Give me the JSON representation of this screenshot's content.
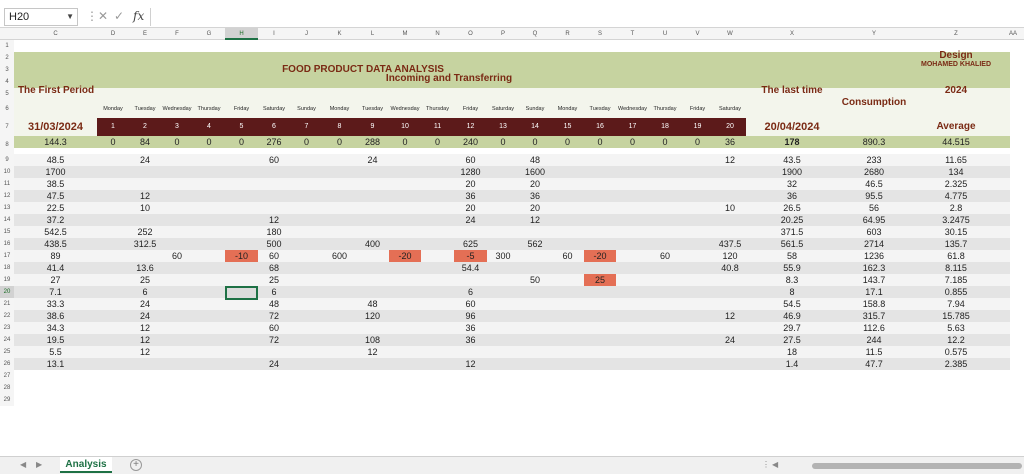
{
  "namebox": "H20",
  "fx": "fx",
  "sheet_tab": "Analysis",
  "title": "FOOD PRODUCT DATA ANALYSIS",
  "design_label": "Design",
  "designer": "MOHAMED KHALIED",
  "first_period_label": "The First Period",
  "incoming_label": "Incoming and Transferring",
  "last_time_label": "The last time",
  "consumption_label": "Consumption",
  "year": "2024",
  "average_label": "Average",
  "start_date": "31/03/2024",
  "end_date": "20/04/2024",
  "columns": [
    "C",
    "D",
    "E",
    "F",
    "G",
    "H",
    "I",
    "J",
    "K",
    "L",
    "M",
    "N",
    "O",
    "P",
    "Q",
    "R",
    "S",
    "T",
    "U",
    "V",
    "W",
    "X",
    "Y",
    "Z",
    "AA"
  ],
  "rows": [
    "1",
    "2",
    "3",
    "4",
    "5",
    "6",
    "7",
    "8",
    "9",
    "10",
    "11",
    "12",
    "13",
    "14",
    "15",
    "16",
    "17",
    "18",
    "19",
    "20",
    "21",
    "22",
    "23",
    "24",
    "25",
    "26",
    "27",
    "28",
    "29"
  ],
  "days": [
    "Monday",
    "Tuesday",
    "Wednesday",
    "Thursday",
    "Friday",
    "Saturday",
    "Sunday",
    "Monday",
    "Tuesday",
    "Wednesday",
    "Thursday",
    "Friday",
    "Saturday",
    "Sunday",
    "Monday",
    "Tuesday",
    "Wednesday",
    "Thursday",
    "Friday",
    "Saturday"
  ],
  "day_numbers": [
    "1",
    "2",
    "3",
    "4",
    "5",
    "6",
    "7",
    "8",
    "9",
    "10",
    "11",
    "12",
    "13",
    "14",
    "15",
    "16",
    "17",
    "18",
    "19",
    "20"
  ],
  "data_rows": [
    {
      "first": "144.3",
      "d": [
        "0",
        "84",
        "0",
        "0",
        "0",
        "276",
        "0",
        "0",
        "288",
        "0",
        "0",
        "240",
        "0",
        "0",
        "0",
        "0",
        "0",
        "0",
        "0",
        "36"
      ],
      "last": "178",
      "cons": "890.3",
      "avg": "44.515"
    },
    {
      "first": "48.5",
      "d": [
        "",
        "24",
        "",
        "",
        "",
        "60",
        "",
        "",
        "24",
        "",
        "",
        "60",
        "",
        "48",
        "",
        "",
        "",
        "",
        "",
        "12"
      ],
      "last": "43.5",
      "cons": "233",
      "avg": "11.65"
    },
    {
      "first": "1700",
      "d": [
        "",
        "",
        "",
        "",
        "",
        "",
        "",
        "",
        "",
        "",
        "",
        "1280",
        "",
        "1600",
        "",
        "",
        "",
        "",
        "",
        ""
      ],
      "last": "1900",
      "cons": "2680",
      "avg": "134"
    },
    {
      "first": "38.5",
      "d": [
        "",
        "",
        "",
        "",
        "",
        "",
        "",
        "",
        "",
        "",
        "",
        "20",
        "",
        "20",
        "",
        "",
        "",
        "",
        "",
        ""
      ],
      "last": "32",
      "cons": "46.5",
      "avg": "2.325"
    },
    {
      "first": "47.5",
      "d": [
        "",
        "12",
        "",
        "",
        "",
        "",
        "",
        "",
        "",
        "",
        "",
        "36",
        "",
        "36",
        "",
        "",
        "",
        "",
        "",
        ""
      ],
      "last": "36",
      "cons": "95.5",
      "avg": "4.775"
    },
    {
      "first": "22.5",
      "d": [
        "",
        "10",
        "",
        "",
        "",
        "",
        "",
        "",
        "",
        "",
        "",
        "20",
        "",
        "20",
        "",
        "",
        "",
        "",
        "",
        "10"
      ],
      "last": "26.5",
      "cons": "56",
      "avg": "2.8"
    },
    {
      "first": "37.2",
      "d": [
        "",
        "",
        "",
        "",
        "",
        "12",
        "",
        "",
        "",
        "",
        "",
        "24",
        "",
        "12",
        "",
        "",
        "",
        "",
        "",
        ""
      ],
      "last": "20.25",
      "cons": "64.95",
      "avg": "3.2475"
    },
    {
      "first": "542.5",
      "d": [
        "",
        "252",
        "",
        "",
        "",
        "180",
        "",
        "",
        "",
        "",
        "",
        "",
        "",
        "",
        "",
        "",
        "",
        "",
        "",
        ""
      ],
      "last": "371.5",
      "cons": "603",
      "avg": "30.15"
    },
    {
      "first": "438.5",
      "d": [
        "",
        "312.5",
        "",
        "",
        "",
        "500",
        "",
        "",
        "400",
        "",
        "",
        "625",
        "",
        "562",
        "",
        "",
        "",
        "",
        "",
        "437.5"
      ],
      "last": "561.5",
      "cons": "2714",
      "avg": "135.7"
    },
    {
      "first": "89",
      "d": [
        "",
        "",
        "60",
        "",
        "-10",
        "60",
        "",
        "600",
        "",
        "-20",
        "",
        "-5",
        "300",
        "",
        "60",
        "-20",
        "",
        "60",
        "",
        "120"
      ],
      "last": "58",
      "cons": "1236",
      "avg": "61.8"
    },
    {
      "first": "41.4",
      "d": [
        "",
        "13.6",
        "",
        "",
        "",
        "68",
        "",
        "",
        "",
        "",
        "",
        "54.4",
        "",
        "",
        "",
        "",
        "",
        "",
        "",
        "40.8"
      ],
      "last": "55.9",
      "cons": "162.3",
      "avg": "8.115"
    },
    {
      "first": "27",
      "d": [
        "",
        "25",
        "",
        "",
        "",
        "25",
        "",
        "",
        "",
        "",
        "",
        "",
        "",
        "50",
        "",
        "25",
        "",
        "",
        "",
        ""
      ],
      "last": "8.3",
      "cons": "143.7",
      "avg": "7.185"
    },
    {
      "first": "7.1",
      "d": [
        "",
        "6",
        "",
        "",
        "",
        "6",
        "",
        "",
        "",
        "",
        "",
        "6",
        "",
        "",
        "",
        "",
        "",
        "",
        "",
        ""
      ],
      "last": "8",
      "cons": "17.1",
      "avg": "0.855"
    },
    {
      "first": "33.3",
      "d": [
        "",
        "24",
        "",
        "",
        "",
        "48",
        "",
        "",
        "48",
        "",
        "",
        "60",
        "",
        "",
        "",
        "",
        "",
        "",
        "",
        ""
      ],
      "last": "54.5",
      "cons": "158.8",
      "avg": "7.94"
    },
    {
      "first": "38.6",
      "d": [
        "",
        "24",
        "",
        "",
        "",
        "72",
        "",
        "",
        "120",
        "",
        "",
        "96",
        "",
        "",
        "",
        "",
        "",
        "",
        "",
        "12"
      ],
      "last": "46.9",
      "cons": "315.7",
      "avg": "15.785"
    },
    {
      "first": "34.3",
      "d": [
        "",
        "12",
        "",
        "",
        "",
        "60",
        "",
        "",
        "",
        "",
        "",
        "36",
        "",
        "",
        "",
        "",
        "",
        "",
        "",
        ""
      ],
      "last": "29.7",
      "cons": "112.6",
      "avg": "5.63"
    },
    {
      "first": "19.5",
      "d": [
        "",
        "12",
        "",
        "",
        "",
        "72",
        "",
        "",
        "108",
        "",
        "",
        "36",
        "",
        "",
        "",
        "",
        "",
        "",
        "",
        "24"
      ],
      "last": "27.5",
      "cons": "244",
      "avg": "12.2"
    },
    {
      "first": "5.5",
      "d": [
        "",
        "12",
        "",
        "",
        "",
        "",
        "",
        "",
        "12",
        "",
        "",
        "",
        "",
        "",
        "",
        "",
        "",
        "",
        "",
        ""
      ],
      "last": "18",
      "cons": "11.5",
      "avg": "0.575"
    },
    {
      "first": "13.1",
      "d": [
        "",
        "",
        "",
        "",
        "",
        "24",
        "",
        "",
        "",
        "",
        "",
        "12",
        "",
        "",
        "",
        "",
        "",
        "",
        "",
        ""
      ],
      "last": "1.4",
      "cons": "47.7",
      "avg": "2.385"
    }
  ]
}
